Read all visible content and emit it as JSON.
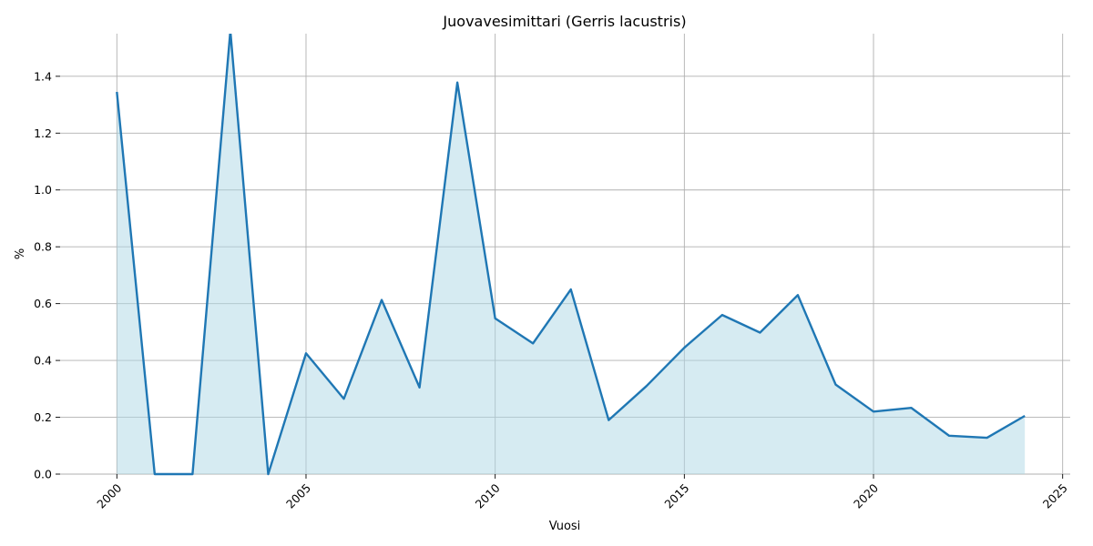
{
  "chart_data": {
    "type": "area",
    "title": "Juovavesimittari (Gerris lacustris)",
    "xlabel": "Vuosi",
    "ylabel": "%",
    "xlim": [
      1998.5,
      2025.2
    ],
    "ylim": [
      0,
      1.55
    ],
    "x_ticks": [
      "2000",
      "2005",
      "2010",
      "2015",
      "2020",
      "2025"
    ],
    "y_ticks": [
      "0.0",
      "0.2",
      "0.4",
      "0.6",
      "0.8",
      "1.0",
      "1.2",
      "1.4"
    ],
    "grid": true,
    "line_color": "#1f77b4",
    "fill_color": "#add8e6",
    "series": [
      {
        "x": [
          2000,
          2001,
          2002,
          2003,
          2004,
          2005,
          2006,
          2007,
          2008,
          2009,
          2010,
          2011,
          2012,
          2013,
          2014,
          2015,
          2016,
          2017,
          2018,
          2019,
          2020,
          2021,
          2022,
          2023,
          2024
        ],
        "values": [
          1.345,
          0.0,
          0.0,
          1.56,
          0.0,
          0.425,
          0.265,
          0.613,
          0.305,
          1.378,
          0.548,
          0.46,
          0.65,
          0.19,
          0.31,
          0.445,
          0.56,
          0.498,
          0.63,
          0.315,
          0.22,
          0.233,
          0.135,
          0.128,
          0.205
        ]
      }
    ]
  }
}
